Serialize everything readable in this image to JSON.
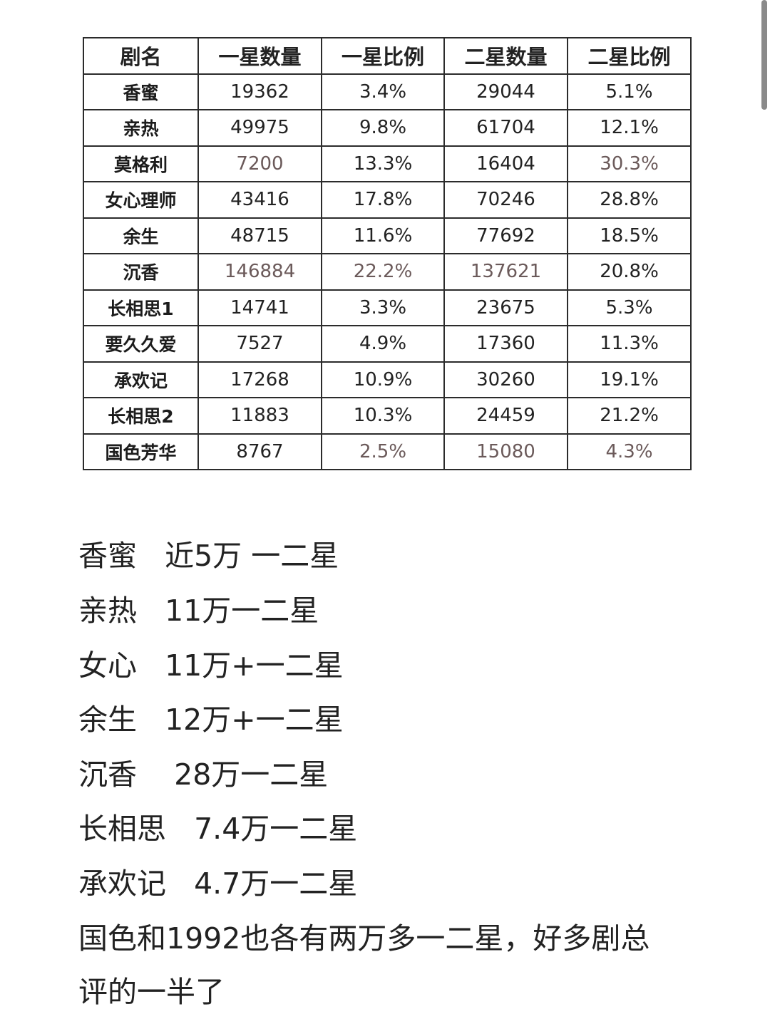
{
  "table": {
    "headers": [
      "剧名",
      "一星数量",
      "一星比例",
      "二星数量",
      "二星比例"
    ],
    "rows": [
      [
        "香蜜",
        "19362",
        "3.4%",
        "29044",
        "5.1%"
      ],
      [
        "亲热",
        "49975",
        "9.8%",
        "61704",
        "12.1%"
      ],
      [
        "莫格利",
        "7200",
        "13.3%",
        "16404",
        "30.3%"
      ],
      [
        "女心理师",
        "43416",
        "17.8%",
        "70246",
        "28.8%"
      ],
      [
        "余生",
        "48715",
        "11.6%",
        "77692",
        "18.5%"
      ],
      [
        "沉香",
        "146884",
        "22.2%",
        "137621",
        "20.8%"
      ],
      [
        "长相思1",
        "14741",
        "3.3%",
        "23675",
        "5.3%"
      ],
      [
        "要久久爱",
        "7527",
        "4.9%",
        "17360",
        "11.3%"
      ],
      [
        "承欢记",
        "17268",
        "10.9%",
        "30260",
        "19.1%"
      ],
      [
        "长相思2",
        "11883",
        "10.3%",
        "24459",
        "21.2%"
      ],
      [
        "国色芳华",
        "8767",
        "2.5%",
        "15080",
        "4.3%"
      ]
    ]
  },
  "notes": [
    "香蜜   近5万 一二星",
    "亲热   11万一二星",
    "女心   11万+一二星",
    "余生   12万+一二星",
    "沉香    28万一二星",
    "长相思   7.4万一二星",
    "承欢记   4.7万一二星",
    "国色和1992也各有两万多一二星，好多剧总",
    "评的一半了"
  ]
}
